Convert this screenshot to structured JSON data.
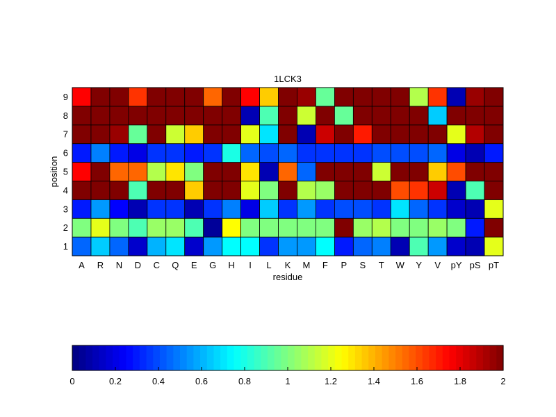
{
  "chart_data": {
    "type": "heatmap",
    "title": "1LCK3",
    "xlabel": "residue",
    "ylabel": "position",
    "x_categories": [
      "A",
      "R",
      "N",
      "D",
      "C",
      "Q",
      "E",
      "G",
      "H",
      "I",
      "L",
      "K",
      "M",
      "F",
      "P",
      "S",
      "T",
      "W",
      "Y",
      "V",
      "pY",
      "pS",
      "pT"
    ],
    "y_categories": [
      "1",
      "2",
      "3",
      "4",
      "5",
      "6",
      "7",
      "8",
      "9"
    ],
    "colormap": "jet",
    "clim": [
      0,
      2
    ],
    "colorbar": {
      "placement": "bottom",
      "ticks": [
        0,
        0.2,
        0.4,
        0.6,
        0.8,
        1,
        1.2,
        1.4,
        1.6,
        1.8,
        2
      ],
      "tick_labels": [
        "0",
        "0.2",
        "0.4",
        "0.6",
        "0.8",
        "1",
        "1.2",
        "1.4",
        "1.6",
        "1.8",
        "2"
      ]
    },
    "values": [
      [
        0.45,
        0.65,
        0.45,
        0.15,
        0.6,
        0.7,
        0.15,
        0.55,
        0.75,
        0.75,
        0.35,
        0.55,
        0.55,
        0.75,
        0.3,
        0.45,
        0.5,
        0.1,
        0.9,
        0.55,
        0.15,
        0.1,
        1.2
      ],
      [
        1.0,
        1.2,
        1.0,
        0.9,
        1.05,
        1.05,
        0.9,
        0.05,
        1.25,
        1.0,
        1.0,
        1.0,
        1.0,
        1.0,
        2.0,
        1.05,
        1.1,
        1.0,
        1.0,
        1.05,
        1.0,
        0.3,
        2.0
      ],
      [
        0.3,
        0.55,
        0.25,
        0.1,
        0.35,
        0.35,
        0.1,
        0.35,
        0.5,
        0.2,
        0.65,
        0.35,
        0.55,
        0.35,
        0.4,
        0.4,
        0.35,
        0.7,
        0.45,
        0.35,
        0.15,
        0.1,
        1.2
      ],
      [
        2.0,
        2.0,
        2.0,
        0.9,
        2.0,
        2.0,
        1.35,
        2.0,
        2.0,
        1.2,
        1.0,
        2.0,
        1.1,
        1.05,
        2.0,
        2.0,
        2.0,
        1.6,
        1.65,
        1.85,
        0.1,
        0.9,
        2.0
      ],
      [
        1.75,
        2.0,
        1.55,
        1.55,
        1.1,
        1.3,
        1.0,
        2.0,
        2.0,
        1.3,
        0.1,
        1.55,
        0.45,
        2.0,
        2.0,
        2.0,
        1.15,
        2.0,
        2.0,
        1.35,
        1.6,
        2.0,
        2.0
      ],
      [
        0.3,
        0.5,
        0.3,
        0.2,
        0.35,
        0.35,
        0.3,
        0.35,
        0.8,
        0.45,
        0.4,
        0.45,
        0.35,
        0.35,
        0.35,
        0.35,
        0.4,
        0.4,
        0.4,
        0.45,
        0.2,
        0.1,
        0.3
      ],
      [
        2.0,
        2.0,
        1.95,
        0.95,
        2.0,
        1.15,
        1.35,
        2.0,
        2.0,
        1.2,
        0.7,
        2.0,
        0.1,
        1.85,
        2.0,
        1.7,
        2.0,
        2.0,
        2.0,
        2.0,
        1.2,
        1.9,
        2.0
      ],
      [
        2.0,
        2.0,
        2.0,
        2.0,
        2.0,
        2.0,
        2.0,
        2.0,
        2.0,
        0.1,
        0.9,
        2.0,
        1.15,
        2.0,
        0.95,
        2.0,
        2.0,
        2.0,
        2.0,
        0.65,
        2.0,
        2.0,
        2.0
      ],
      [
        1.75,
        2.0,
        2.0,
        1.65,
        2.0,
        2.0,
        2.0,
        1.55,
        2.0,
        1.75,
        1.35,
        2.0,
        1.95,
        0.95,
        2.0,
        2.0,
        2.0,
        2.0,
        1.1,
        1.65,
        0.1,
        1.95,
        2.0
      ]
    ]
  }
}
